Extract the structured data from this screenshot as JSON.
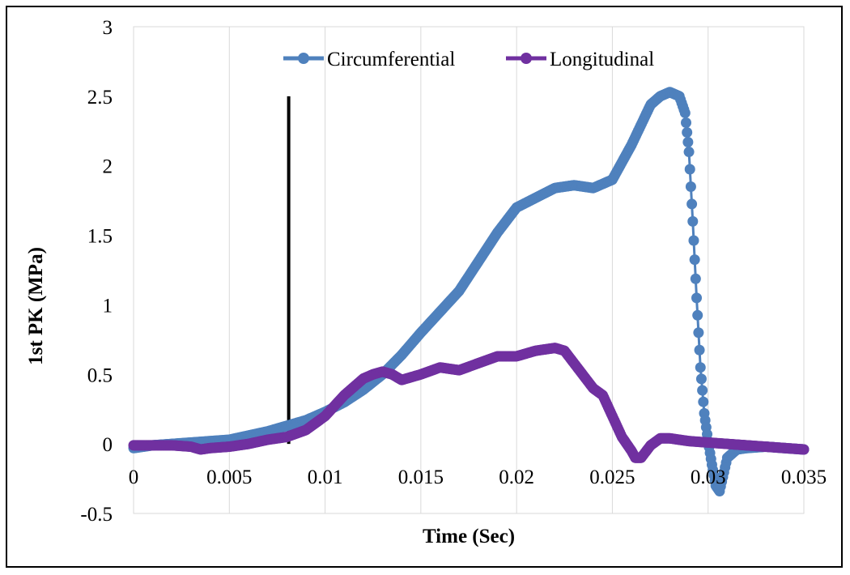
{
  "chart_data": {
    "type": "line",
    "title": "",
    "xlabel": "Time (Sec)",
    "ylabel": "1st PK (MPa)",
    "xlim": [
      0,
      0.035
    ],
    "ylim": [
      -0.5,
      3
    ],
    "x_ticks": [
      "0",
      "0.005",
      "0.01",
      "0.015",
      "0.02",
      "0.025",
      "0.03",
      "0.035"
    ],
    "x_tick_values": [
      0,
      0.005,
      0.01,
      0.015,
      0.02,
      0.025,
      0.03,
      0.035
    ],
    "y_ticks": [
      "-0.5",
      "0",
      "0.5",
      "1",
      "1.5",
      "2",
      "2.5",
      "3"
    ],
    "y_tick_values": [
      -0.5,
      0,
      0.5,
      1,
      1.5,
      2,
      2.5,
      3
    ],
    "grid": "vertical",
    "legend_position": "top",
    "series": [
      {
        "name": "Circumferential",
        "color": "#4f81bd",
        "x": [
          0,
          0.001,
          0.002,
          0.003,
          0.004,
          0.005,
          0.006,
          0.007,
          0.008,
          0.009,
          0.01,
          0.011,
          0.012,
          0.013,
          0.014,
          0.015,
          0.016,
          0.017,
          0.018,
          0.019,
          0.02,
          0.021,
          0.022,
          0.023,
          0.024,
          0.025,
          0.026,
          0.027,
          0.0275,
          0.028,
          0.0285,
          0.0288,
          0.029,
          0.0292,
          0.0294,
          0.0296,
          0.0298,
          0.03,
          0.0302,
          0.0304,
          0.0306,
          0.031,
          0.0315,
          0.032,
          0.033,
          0.034,
          0.035
        ],
        "y": [
          -0.03,
          -0.01,
          0.0,
          0.01,
          0.02,
          0.03,
          0.06,
          0.09,
          0.13,
          0.17,
          0.23,
          0.3,
          0.39,
          0.5,
          0.64,
          0.8,
          0.95,
          1.1,
          1.31,
          1.52,
          1.7,
          1.77,
          1.84,
          1.86,
          1.84,
          1.9,
          2.15,
          2.44,
          2.5,
          2.53,
          2.5,
          2.38,
          2.1,
          1.6,
          1.05,
          0.55,
          0.22,
          0.02,
          -0.15,
          -0.3,
          -0.34,
          -0.1,
          -0.04,
          -0.03,
          -0.02,
          -0.03,
          -0.04
        ]
      },
      {
        "name": "Longitudinal",
        "color": "#7030a0",
        "x": [
          0,
          0.001,
          0.002,
          0.003,
          0.0035,
          0.004,
          0.005,
          0.006,
          0.007,
          0.008,
          0.009,
          0.01,
          0.011,
          0.012,
          0.0125,
          0.013,
          0.0135,
          0.014,
          0.015,
          0.016,
          0.017,
          0.018,
          0.019,
          0.02,
          0.021,
          0.022,
          0.0225,
          0.023,
          0.024,
          0.0245,
          0.025,
          0.0255,
          0.026,
          0.0262,
          0.0265,
          0.027,
          0.0275,
          0.028,
          0.029,
          0.03,
          0.031,
          0.032,
          0.033,
          0.034,
          0.035
        ],
        "y": [
          -0.01,
          -0.01,
          -0.01,
          -0.02,
          -0.04,
          -0.03,
          -0.02,
          0.0,
          0.03,
          0.05,
          0.1,
          0.2,
          0.35,
          0.47,
          0.5,
          0.52,
          0.5,
          0.46,
          0.5,
          0.55,
          0.53,
          0.58,
          0.63,
          0.63,
          0.67,
          0.69,
          0.67,
          0.58,
          0.4,
          0.35,
          0.2,
          0.05,
          -0.05,
          -0.1,
          -0.1,
          -0.01,
          0.04,
          0.04,
          0.02,
          0.01,
          0.0,
          -0.01,
          -0.02,
          -0.03,
          -0.04
        ]
      }
    ],
    "annotations": [
      {
        "type": "vertical-line",
        "x": 0.0081,
        "y_from": 0,
        "y_to": 2.5,
        "color": "#000000"
      }
    ]
  }
}
